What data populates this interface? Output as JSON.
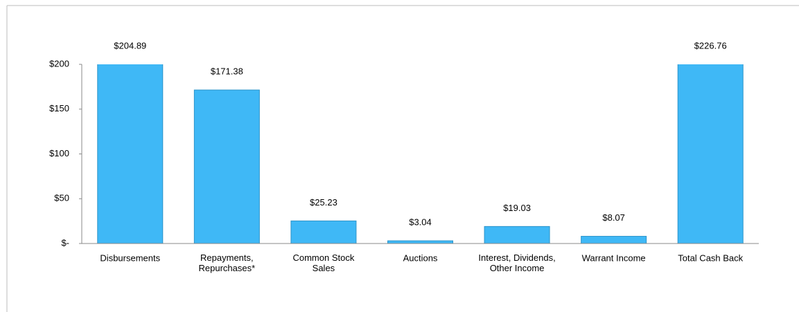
{
  "chart_data": {
    "type": "bar",
    "categories": [
      "Disbursements",
      "Repayments,\nRepurchases*",
      "Common Stock\nSales",
      "Auctions",
      "Interest, Dividends,\nOther Income",
      "Warrant Income",
      "Total Cash Back"
    ],
    "values": [
      204.89,
      171.38,
      25.23,
      3.04,
      19.03,
      8.07,
      226.76
    ],
    "value_labels": [
      "$204.89",
      "$171.38",
      "$25.23",
      "$3.04",
      "$19.03",
      "$8.07",
      "$226.76"
    ],
    "color": "#3fb8f6",
    "ylim": [
      0,
      200
    ],
    "yticks": [
      {
        "value": 0,
        "label": "$-"
      },
      {
        "value": 50,
        "label": "$50"
      },
      {
        "value": 100,
        "label": "$100"
      },
      {
        "value": 150,
        "label": "$150"
      },
      {
        "value": 200,
        "label": "$200"
      }
    ],
    "grid": false
  }
}
